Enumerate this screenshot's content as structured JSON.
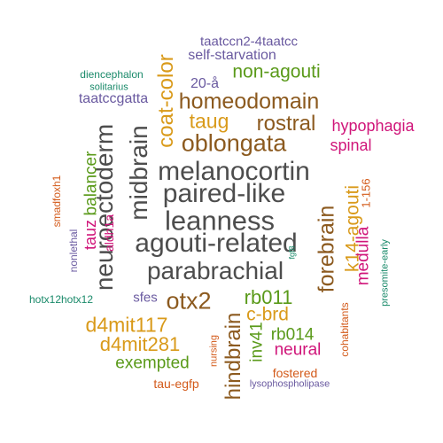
{
  "colors": {
    "dark_gray": "#4d4d4d",
    "brown": "#8c5a1f",
    "gold": "#d99a1a",
    "green": "#5a9a1a",
    "magenta": "#d0167a",
    "purple": "#6a5aa0",
    "orange": "#d35a1a",
    "teal": "#1a8a6a"
  },
  "words": [
    {
      "text": "taatccn2-4taatcc",
      "color": "purple"
    },
    {
      "text": "self-starvation",
      "color": "purple"
    },
    {
      "text": "diencephalon",
      "color": "teal"
    },
    {
      "text": "non-agouti",
      "color": "green"
    },
    {
      "text": "solitarius",
      "color": "teal"
    },
    {
      "text": "20-å",
      "color": "purple"
    },
    {
      "text": "taatccgatta",
      "color": "purple"
    },
    {
      "text": "homeodomain",
      "color": "brown"
    },
    {
      "text": "coat-color",
      "color": "gold"
    },
    {
      "text": "taug",
      "color": "gold"
    },
    {
      "text": "rostral",
      "color": "brown"
    },
    {
      "text": "hypophagia",
      "color": "magenta"
    },
    {
      "text": "oblongata",
      "color": "brown"
    },
    {
      "text": "spinal",
      "color": "magenta"
    },
    {
      "text": "neuroectoderm",
      "color": "dark_gray"
    },
    {
      "text": "midbrain",
      "color": "dark_gray"
    },
    {
      "text": "melanocortin",
      "color": "dark_gray"
    },
    {
      "text": "smadfoxh1",
      "color": "orange"
    },
    {
      "text": "balancer",
      "color": "green"
    },
    {
      "text": "paired-like",
      "color": "dark_gray"
    },
    {
      "text": "agouti-related",
      "color": "dark_gray"
    },
    {
      "text": "leanness",
      "color": "dark_gray"
    },
    {
      "text": "nonlethal",
      "color": "purple"
    },
    {
      "text": "tauz",
      "color": "magenta"
    },
    {
      "text": "aldh1a",
      "color": "magenta"
    },
    {
      "text": "forebrain",
      "color": "brown"
    },
    {
      "text": "k14-agouti",
      "color": "gold"
    },
    {
      "text": "1-156",
      "color": "orange"
    },
    {
      "text": "medulla",
      "color": "magenta"
    },
    {
      "text": "presomite-early",
      "color": "teal"
    },
    {
      "text": "parabrachial",
      "color": "dark_gray"
    },
    {
      "text": "hotx12hotx12",
      "color": "teal"
    },
    {
      "text": "sfes",
      "color": "purple"
    },
    {
      "text": "otx2",
      "color": "brown"
    },
    {
      "text": "fgf8",
      "color": "teal"
    },
    {
      "text": "rb011",
      "color": "green"
    },
    {
      "text": "c-brd",
      "color": "gold"
    },
    {
      "text": "d4mit117",
      "color": "gold"
    },
    {
      "text": "d4mit281",
      "color": "gold"
    },
    {
      "text": "hindbrain",
      "color": "brown"
    },
    {
      "text": "inv41",
      "color": "green"
    },
    {
      "text": "rb014",
      "color": "green"
    },
    {
      "text": "neural",
      "color": "magenta"
    },
    {
      "text": "cohabitants",
      "color": "orange"
    },
    {
      "text": "nursing",
      "color": "orange"
    },
    {
      "text": "exempted",
      "color": "green"
    },
    {
      "text": "fostered",
      "color": "orange"
    },
    {
      "text": "tau-egfp",
      "color": "orange"
    },
    {
      "text": "lysophospholipase",
      "color": "purple"
    }
  ]
}
